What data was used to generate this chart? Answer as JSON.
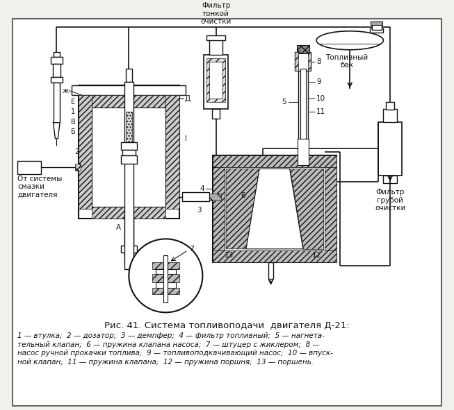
{
  "title": "Рис. 41. Система топливоподачи  двигателя Д-21:",
  "caption_line1": "1 — втулка;  2 — дозатор;  3 — демпфер;  4 — фильтр топливный;  5 — нагнета-",
  "caption_line2": "тельный клапан;  6 — пружина клапана насоса;  7 — штуцер с жиклером;  8 —",
  "caption_line3": "насос ручной прокачки топлива;  9 — топливоподкачивающий насос;  10 — впуск-",
  "caption_line4": "ной клапан;  11 — пружина клапана;  12 — пружина поршня;  13 — поршень.",
  "label_filtr_tonkoy": "Фильтр\nтонкой\nочистки",
  "label_toplivny_bak": "Топливный\nбак",
  "label_filtr_gruboy": "Фильтр\nгрубой\nочистки",
  "label_ot_sistemy": "От системы\nсмазки\nдвигателя",
  "bg_color": "#f0f0ec",
  "line_color": "#111111",
  "text_color": "#111111",
  "hatch_fc": "#888888",
  "white": "#ffffff"
}
